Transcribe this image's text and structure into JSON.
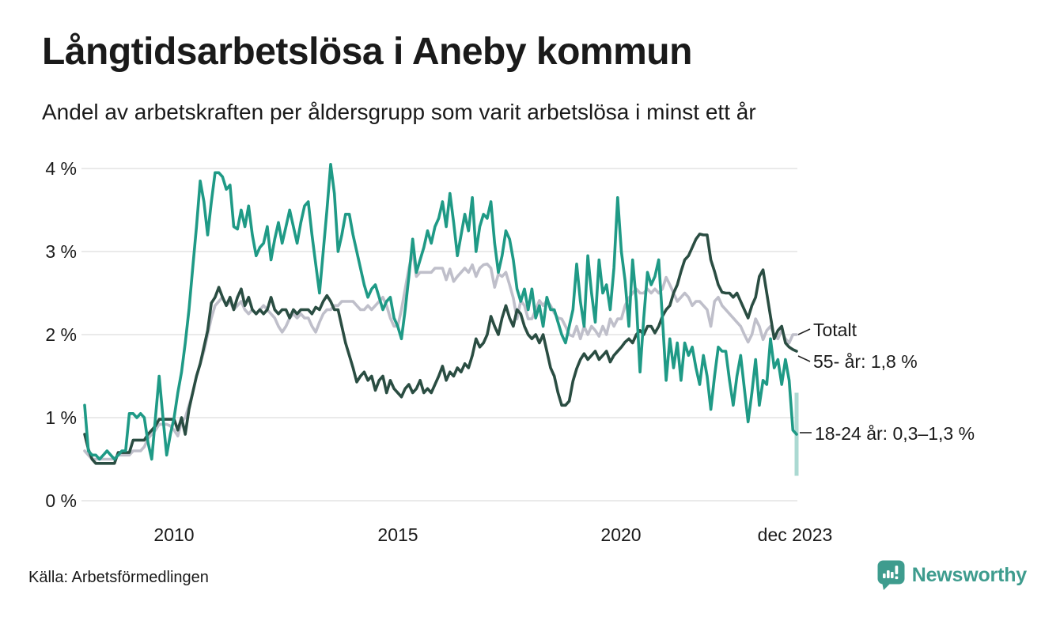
{
  "header": {
    "title": "Långtidsarbetslösa i Aneby kommun",
    "subtitle": "Andel av arbetskraften per åldersgrupp som varit arbetslösa i minst ett år"
  },
  "footer": {
    "source": "Källa: Arbetsförmedlingen",
    "brand": "Newsworthy",
    "brand_color": "#3e9c8e"
  },
  "chart_data": {
    "type": "line",
    "title": "Långtidsarbetslösa i Aneby kommun",
    "subtitle": "Andel av arbetskraften per åldersgrupp som varit arbetslösa i minst ett år",
    "x_unit": "month",
    "x_range": [
      "2008-01",
      "2023-12"
    ],
    "ylim": [
      0,
      4.3
    ],
    "grid": "horizontal",
    "legend_position": "right-annotations",
    "y_ticks": [
      {
        "label": "4 %",
        "value": 4
      },
      {
        "label": "3 %",
        "value": 3
      },
      {
        "label": "2 %",
        "value": 2
      },
      {
        "label": "1 %",
        "value": 1
      },
      {
        "label": "0 %",
        "value": 0
      }
    ],
    "x_ticks": [
      {
        "label": "2010",
        "month_index": 24
      },
      {
        "label": "2015",
        "month_index": 84
      },
      {
        "label": "2020",
        "month_index": 144
      },
      {
        "label": "dec 2023",
        "month_index": 191
      }
    ],
    "series": [
      {
        "name": "Totalt",
        "end_label": "Totalt",
        "color": "#bfbfca",
        "values": [
          0.6,
          0.55,
          0.5,
          0.5,
          0.5,
          0.5,
          0.5,
          0.5,
          0.5,
          0.55,
          0.55,
          0.55,
          0.55,
          0.6,
          0.6,
          0.6,
          0.65,
          0.75,
          0.8,
          0.85,
          0.92,
          0.92,
          0.92,
          0.9,
          0.85,
          0.78,
          0.95,
          1.0,
          1.15,
          1.3,
          1.5,
          1.65,
          1.8,
          2.0,
          2.2,
          2.35,
          2.4,
          2.45,
          2.35,
          2.4,
          2.3,
          2.35,
          2.4,
          2.3,
          2.25,
          2.3,
          2.25,
          2.3,
          2.35,
          2.3,
          2.25,
          2.2,
          2.1,
          2.03,
          2.1,
          2.2,
          2.25,
          2.2,
          2.25,
          2.2,
          2.2,
          2.1,
          2.03,
          2.15,
          2.25,
          2.3,
          2.3,
          2.35,
          2.35,
          2.4,
          2.4,
          2.4,
          2.4,
          2.35,
          2.3,
          2.3,
          2.35,
          2.3,
          2.35,
          2.4,
          2.45,
          2.35,
          2.2,
          2.1,
          2.1,
          2.3,
          2.55,
          2.8,
          3.0,
          2.7,
          2.75,
          2.75,
          2.75,
          2.75,
          2.8,
          2.8,
          2.8,
          2.66,
          2.79,
          2.64,
          2.7,
          2.75,
          2.8,
          2.75,
          2.84,
          2.7,
          2.8,
          2.84,
          2.85,
          2.8,
          2.57,
          2.73,
          2.7,
          2.75,
          2.6,
          2.44,
          2.19,
          2.41,
          2.35,
          2.19,
          2.19,
          2.3,
          2.41,
          2.35,
          2.41,
          2.35,
          2.26,
          2.2,
          2.19,
          2.1,
          2.0,
          1.98,
          2.1,
          1.95,
          2.1,
          2.0,
          2.1,
          2.05,
          1.98,
          2.1,
          2.0,
          2.19,
          2.1,
          2.19,
          2.19,
          2.35,
          2.44,
          2.5,
          2.55,
          2.5,
          2.5,
          2.55,
          2.5,
          2.55,
          2.5,
          2.55,
          2.69,
          2.6,
          2.5,
          2.4,
          2.45,
          2.5,
          2.45,
          2.35,
          2.4,
          2.4,
          2.35,
          2.3,
          2.1,
          2.4,
          2.45,
          2.35,
          2.3,
          2.25,
          2.2,
          2.15,
          2.1,
          2.0,
          1.91,
          2.0,
          2.19,
          2.1,
          1.94,
          2.05,
          2.1,
          2.0,
          1.95,
          2.05,
          1.95,
          1.9,
          2.0,
          2.0
        ]
      },
      {
        "name": "55- år",
        "end_label": "55- år: 1,8 %",
        "end_value": "1,8 %",
        "color": "#2a4d42",
        "values": [
          0.8,
          0.62,
          0.5,
          0.45,
          0.45,
          0.45,
          0.45,
          0.45,
          0.45,
          0.58,
          0.58,
          0.58,
          0.58,
          0.73,
          0.73,
          0.73,
          0.73,
          0.8,
          0.85,
          0.9,
          0.98,
          0.98,
          0.98,
          0.98,
          0.98,
          0.85,
          1.0,
          0.8,
          1.1,
          1.3,
          1.5,
          1.65,
          1.85,
          2.05,
          2.38,
          2.45,
          2.57,
          2.45,
          2.35,
          2.45,
          2.3,
          2.45,
          2.55,
          2.35,
          2.45,
          2.3,
          2.25,
          2.3,
          2.25,
          2.3,
          2.45,
          2.3,
          2.25,
          2.3,
          2.3,
          2.2,
          2.3,
          2.25,
          2.3,
          2.3,
          2.3,
          2.25,
          2.33,
          2.3,
          2.4,
          2.47,
          2.4,
          2.3,
          2.3,
          2.1,
          1.9,
          1.75,
          1.6,
          1.43,
          1.5,
          1.55,
          1.45,
          1.5,
          1.33,
          1.45,
          1.5,
          1.3,
          1.45,
          1.35,
          1.3,
          1.25,
          1.35,
          1.4,
          1.3,
          1.35,
          1.45,
          1.3,
          1.35,
          1.3,
          1.4,
          1.5,
          1.62,
          1.45,
          1.55,
          1.5,
          1.6,
          1.55,
          1.65,
          1.6,
          1.75,
          1.95,
          1.85,
          1.9,
          2.0,
          2.22,
          2.1,
          2.0,
          2.2,
          2.35,
          2.2,
          2.1,
          2.3,
          2.25,
          2.1,
          2.0,
          1.95,
          2.0,
          1.9,
          2.0,
          1.8,
          1.6,
          1.5,
          1.3,
          1.15,
          1.15,
          1.2,
          1.44,
          1.59,
          1.7,
          1.77,
          1.7,
          1.75,
          1.8,
          1.7,
          1.75,
          1.8,
          1.67,
          1.75,
          1.8,
          1.85,
          1.91,
          1.95,
          1.9,
          2.0,
          2.05,
          2.0,
          2.1,
          2.1,
          2.02,
          2.1,
          2.22,
          2.3,
          2.35,
          2.5,
          2.6,
          2.76,
          2.9,
          2.95,
          3.05,
          3.15,
          3.21,
          3.2,
          3.2,
          2.9,
          2.76,
          2.6,
          2.51,
          2.5,
          2.5,
          2.45,
          2.5,
          2.4,
          2.3,
          2.2,
          2.35,
          2.45,
          2.7,
          2.78,
          2.5,
          2.22,
          1.95,
          2.05,
          2.1,
          1.9,
          1.85,
          1.82,
          1.8
        ]
      },
      {
        "name": "18-24 år",
        "end_label": "18-24 år: 0,3–1,3 %",
        "end_value": "0,3–1,3 %",
        "color": "#1f9a86",
        "uncertainty_last": {
          "low": 0.3,
          "high": 1.3,
          "color": "#abd9d2"
        },
        "values": [
          1.15,
          0.6,
          0.55,
          0.55,
          0.5,
          0.55,
          0.6,
          0.55,
          0.5,
          0.55,
          0.6,
          0.6,
          1.05,
          1.05,
          1.0,
          1.05,
          1.0,
          0.7,
          0.5,
          1.0,
          1.5,
          1.0,
          0.55,
          0.8,
          1.0,
          1.3,
          1.55,
          1.9,
          2.3,
          2.8,
          3.3,
          3.85,
          3.6,
          3.2,
          3.6,
          3.95,
          3.95,
          3.9,
          3.75,
          3.8,
          3.3,
          3.27,
          3.5,
          3.3,
          3.55,
          3.2,
          2.95,
          3.05,
          3.1,
          3.3,
          2.9,
          3.15,
          3.35,
          3.1,
          3.3,
          3.5,
          3.3,
          3.1,
          3.35,
          3.55,
          3.6,
          3.2,
          2.85,
          2.5,
          3.0,
          3.5,
          4.05,
          3.7,
          3.0,
          3.2,
          3.45,
          3.45,
          3.2,
          3.0,
          2.8,
          2.6,
          2.45,
          2.55,
          2.6,
          2.45,
          2.3,
          2.4,
          2.45,
          2.2,
          2.1,
          1.95,
          2.3,
          2.7,
          3.15,
          2.75,
          2.9,
          3.05,
          3.25,
          3.1,
          3.3,
          3.4,
          3.6,
          3.3,
          3.7,
          3.35,
          2.95,
          3.2,
          3.45,
          3.25,
          3.65,
          3.0,
          3.3,
          3.45,
          3.4,
          3.6,
          3.1,
          2.75,
          2.95,
          3.25,
          3.15,
          2.9,
          2.55,
          2.4,
          2.55,
          2.3,
          2.55,
          2.2,
          2.35,
          2.1,
          2.45,
          2.3,
          2.3,
          2.15,
          2.0,
          1.9,
          2.1,
          2.3,
          2.85,
          2.4,
          2.1,
          2.95,
          2.5,
          2.15,
          2.9,
          2.5,
          2.6,
          2.3,
          2.8,
          3.65,
          3.0,
          2.65,
          2.1,
          2.9,
          2.4,
          1.55,
          2.2,
          2.75,
          2.6,
          2.7,
          2.9,
          2.2,
          1.45,
          1.95,
          1.6,
          1.9,
          1.45,
          1.9,
          1.75,
          1.85,
          1.6,
          1.4,
          1.75,
          1.5,
          1.1,
          1.5,
          1.85,
          1.8,
          1.8,
          1.45,
          1.15,
          1.5,
          1.75,
          1.35,
          0.95,
          1.3,
          1.7,
          1.15,
          1.45,
          1.4,
          1.95,
          1.6,
          1.7,
          1.4,
          1.7,
          1.45,
          0.85,
          0.8
        ]
      }
    ]
  }
}
